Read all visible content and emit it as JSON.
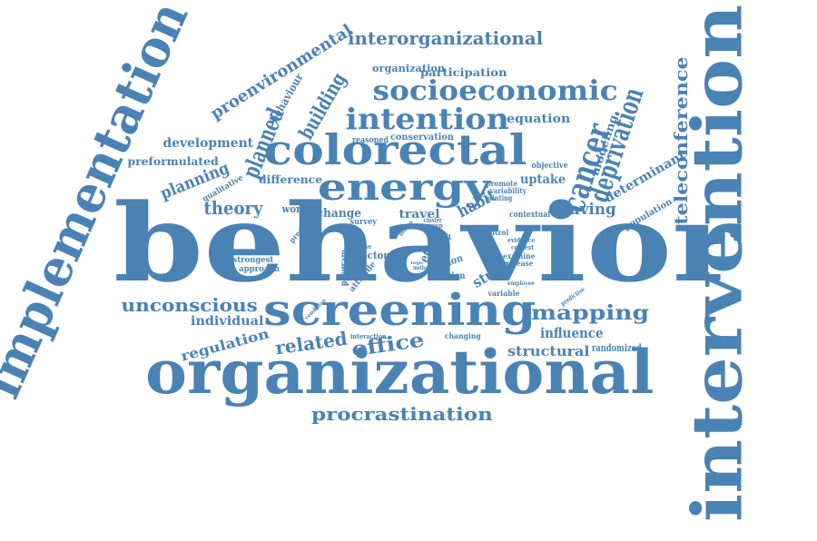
{
  "color": "#4a82b4",
  "background": "#ffffff",
  "words": [
    "behavior",
    "organizational",
    "intervention",
    "implementation",
    "screening",
    "colorectal",
    "energy",
    "intention",
    "socioeconomic",
    "interorganizational",
    "proenvironmental",
    "planned",
    "building",
    "behaviour",
    "organization",
    "participation",
    "equation",
    "cancer",
    "deprivation",
    "teleconference",
    "modeling",
    "determinant",
    "saving",
    "population",
    "development",
    "preformulated",
    "planning",
    "qualitative",
    "difference",
    "theory",
    "worker",
    "change",
    "travel",
    "habit",
    "uptake",
    "objective",
    "promote",
    "variability",
    "printing",
    "contextual",
    "survey",
    "predictor",
    "cluster",
    "group",
    "factor",
    "result",
    "reasoned",
    "conservation",
    "unconscious",
    "individual",
    "regulation",
    "related",
    "office",
    "procrastination",
    "mapping",
    "influence",
    "structural",
    "randomized",
    "study",
    "strongest",
    "approach",
    "information",
    "program",
    "sector",
    "effective",
    "examine",
    "increase",
    "evidence",
    "context",
    "control",
    "region",
    "action",
    "effect",
    "attitude",
    "cognitive",
    "condition",
    "interaction",
    "changing",
    "variable",
    "employee",
    "predictive",
    "micro",
    "method",
    "logic"
  ]
}
